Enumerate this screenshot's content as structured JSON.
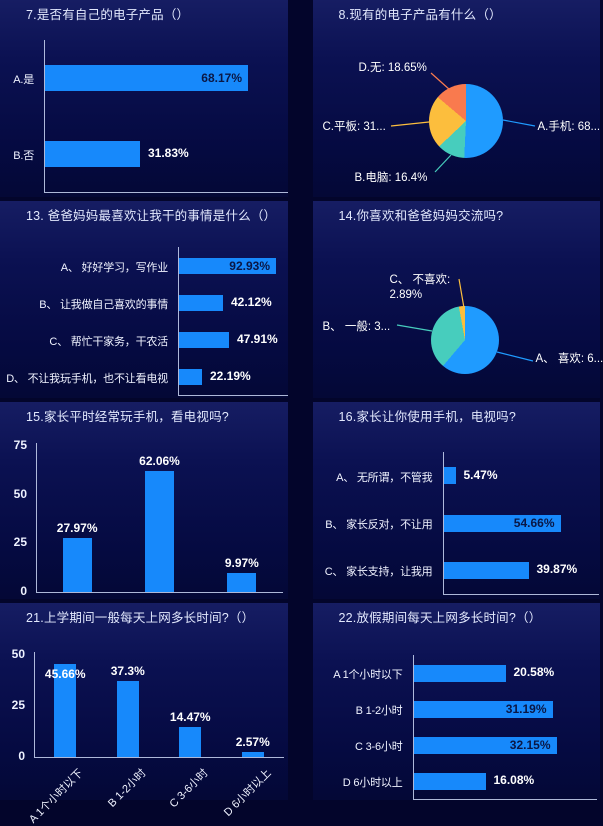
{
  "colors": {
    "background": "#03052b",
    "panel_gradient_top": "#161d63",
    "panel_gradient_bottom": "#040836",
    "bar": "#1789fb",
    "pie_blue": "#1f9bff",
    "pie_teal": "#47cdbd",
    "pie_yellow": "#fcbe3d",
    "pie_orange": "#f97a4e",
    "value_label_inside": "#0a1745",
    "value_label_outside": "#ffffff",
    "axis_line": "#cdd7f5",
    "text": "#f0f3ff"
  },
  "chart_data": [
    {
      "id": "q7",
      "type": "bar",
      "orientation": "horizontal",
      "title": "7.是否有自己的电子产品（）",
      "categories": [
        "A.是",
        "B.否"
      ],
      "values": [
        68.17,
        31.83
      ],
      "value_labels": [
        "68.17%",
        "31.83%"
      ],
      "label_inside": [
        true,
        false
      ],
      "axis_max": 80,
      "grid": false,
      "legend": "none"
    },
    {
      "id": "q8",
      "type": "pie",
      "title": "8.现有的电子产品有什么（）",
      "slices": [
        {
          "label": "A.手机: 68...",
          "value": 68.4,
          "color": "#1f9bff"
        },
        {
          "label": "B.电脑: 16.4%",
          "value": 16.4,
          "color": "#47cdbd"
        },
        {
          "label": "C.平板: 31...",
          "value": 31.3,
          "color": "#fcbe3d"
        },
        {
          "label": "D.无: 18.65%",
          "value": 18.65,
          "color": "#f97a4e"
        }
      ],
      "legend": "none"
    },
    {
      "id": "q13",
      "type": "bar",
      "orientation": "horizontal",
      "title": "13. 爸爸妈妈最喜欢让我干的事情是什么（）",
      "categories": [
        "A、 好好学习，写作业",
        "B、 让我做自己喜欢的事情",
        "C、 帮忙干家务，干农活",
        "D、 不让我玩手机，也不让看电视"
      ],
      "values": [
        92.93,
        42.12,
        47.91,
        22.19
      ],
      "value_labels": [
        "92.93%",
        "42.12%",
        "47.91%",
        "22.19%"
      ],
      "label_inside": [
        true,
        false,
        false,
        false
      ],
      "axis_max": 100,
      "grid": false,
      "legend": "none"
    },
    {
      "id": "q14",
      "type": "pie",
      "title": "14.你喜欢和爸爸妈妈交流吗?",
      "slices": [
        {
          "label": "A、 喜欢: 6...",
          "value": 61.2,
          "color": "#1f9bff"
        },
        {
          "label": "B、 一般: 3...",
          "value": 35.9,
          "color": "#47cdbd"
        },
        {
          "label": "C、 不喜欢: 2.89%",
          "value": 2.89,
          "color": "#fcbe3d"
        }
      ],
      "legend": "none"
    },
    {
      "id": "q15",
      "type": "bar",
      "orientation": "vertical",
      "title": "15.家长平时经常玩手机，看电视吗?",
      "categories": [
        "",
        "",
        ""
      ],
      "values": [
        27.97,
        62.06,
        9.97
      ],
      "value_labels": [
        "27.97%",
        "62.06%",
        "9.97%"
      ],
      "label_inside": [
        false,
        false,
        false
      ],
      "y_ticks": [
        0,
        25,
        50,
        75
      ],
      "axis_max": 75,
      "grid": false,
      "legend": "none"
    },
    {
      "id": "q16",
      "type": "bar",
      "orientation": "horizontal",
      "title": "16.家长让你使用手机，电视吗?",
      "categories": [
        "A、 无所谓，不管我",
        "B、 家长反对，不让用",
        "C、 家长支持，让我用"
      ],
      "values": [
        5.47,
        54.66,
        39.87
      ],
      "value_labels": [
        "5.47%",
        "54.66%",
        "39.87%"
      ],
      "label_inside": [
        false,
        true,
        false
      ],
      "axis_max": 70,
      "grid": false,
      "legend": "none"
    },
    {
      "id": "q21",
      "type": "bar",
      "orientation": "vertical",
      "title": "21.上学期间一般每天上网多长时间?（）",
      "categories": [
        "A 1个小时以下",
        "B 1-2小时",
        "C 3-6小时",
        "D 6小时以上"
      ],
      "values": [
        45.66,
        37.3,
        14.47,
        2.57
      ],
      "value_labels": [
        "45.66%",
        "37.3%",
        "14.47%",
        "2.57%"
      ],
      "label_inside": [
        true,
        false,
        false,
        false
      ],
      "y_ticks": [
        0,
        25,
        50
      ],
      "axis_max": 50,
      "grid": false,
      "legend": "none"
    },
    {
      "id": "q22",
      "type": "bar",
      "orientation": "horizontal",
      "title": "22.放假期间每天上网多长时间?（）",
      "categories": [
        "A 1个小时以下",
        "B 1-2小时",
        "C 3-6小时",
        "D 6小时以上"
      ],
      "values": [
        20.58,
        31.19,
        32.15,
        16.08
      ],
      "value_labels": [
        "20.58%",
        "31.19%",
        "32.15%",
        "16.08%"
      ],
      "label_inside": [
        false,
        true,
        true,
        false
      ],
      "axis_max": 40,
      "grid": false,
      "legend": "none"
    }
  ]
}
